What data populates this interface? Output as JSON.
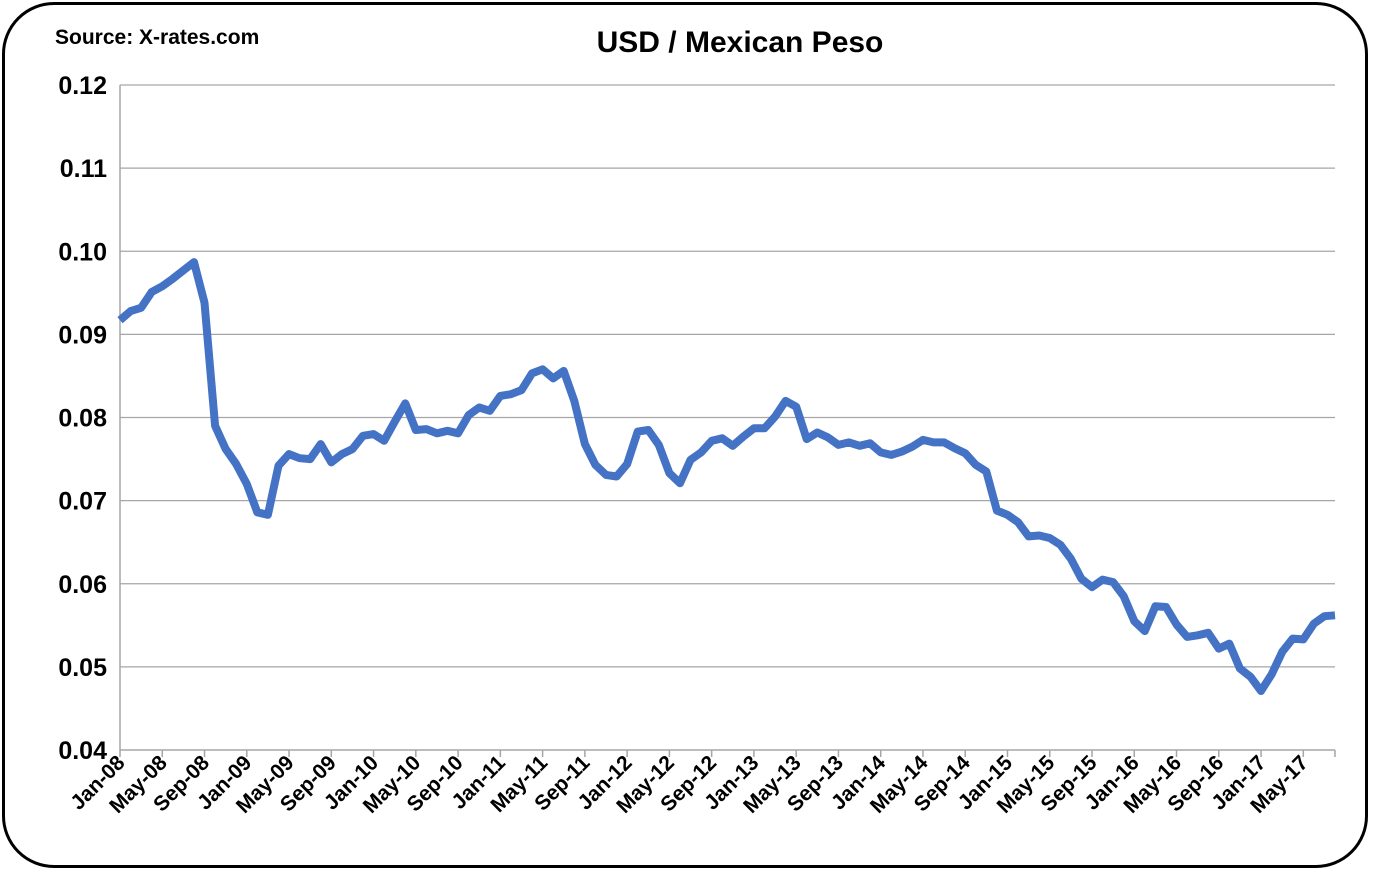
{
  "source_label": "Source: X-rates.com",
  "chart_data": {
    "type": "line",
    "title": "USD / Mexican Peso",
    "xlabel": "",
    "ylabel": "",
    "ylim": [
      0.04,
      0.12
    ],
    "yticks": [
      "0.04",
      "0.05",
      "0.06",
      "0.07",
      "0.08",
      "0.09",
      "0.10",
      "0.11",
      "0.12"
    ],
    "xticks": [
      "Jan-08",
      "May-08",
      "Sep-08",
      "Jan-09",
      "May-09",
      "Sep-09",
      "Jan-10",
      "May-10",
      "Sep-10",
      "Jan-11",
      "May-11",
      "Sep-11",
      "Jan-12",
      "May-12",
      "Sep-12",
      "Jan-13",
      "May-13",
      "Sep-13",
      "Jan-14",
      "May-14",
      "Sep-14",
      "Jan-15",
      "May-15",
      "Sep-15",
      "Jan-16",
      "May-16",
      "Sep-16",
      "Jan-17",
      "May-17"
    ],
    "grid": true,
    "line_color": "#4472C4",
    "series": [
      {
        "name": "",
        "values": [
          0.0917,
          0.0928,
          0.0932,
          0.0951,
          0.0958,
          0.0967,
          0.0977,
          0.0987,
          0.0938,
          0.079,
          0.0762,
          0.0744,
          0.072,
          0.0686,
          0.0683,
          0.0742,
          0.0756,
          0.0751,
          0.075,
          0.0768,
          0.0746,
          0.0756,
          0.0762,
          0.0778,
          0.078,
          0.0772,
          0.0795,
          0.0817,
          0.0785,
          0.0786,
          0.0781,
          0.0784,
          0.0781,
          0.0803,
          0.0812,
          0.0808,
          0.0826,
          0.0828,
          0.0833,
          0.0853,
          0.0858,
          0.0847,
          0.0856,
          0.082,
          0.0768,
          0.0743,
          0.0731,
          0.0729,
          0.0744,
          0.0783,
          0.0785,
          0.0767,
          0.0733,
          0.0721,
          0.0749,
          0.0758,
          0.0772,
          0.0775,
          0.0766,
          0.0777,
          0.0787,
          0.0787,
          0.0801,
          0.082,
          0.0813,
          0.0774,
          0.0782,
          0.0776,
          0.0767,
          0.077,
          0.0766,
          0.0769,
          0.0758,
          0.0755,
          0.0759,
          0.0765,
          0.0773,
          0.077,
          0.077,
          0.0763,
          0.0757,
          0.0743,
          0.0735,
          0.0688,
          0.0683,
          0.0674,
          0.0657,
          0.0658,
          0.0655,
          0.0647,
          0.063,
          0.0606,
          0.0596,
          0.0605,
          0.0602,
          0.0585,
          0.0555,
          0.0543,
          0.0573,
          0.0572,
          0.0551,
          0.0536,
          0.0538,
          0.0541,
          0.0522,
          0.0528,
          0.0498,
          0.0488,
          0.0471,
          0.0491,
          0.0518,
          0.0534,
          0.0533,
          0.0552,
          0.0561,
          0.0562
        ]
      }
    ]
  }
}
